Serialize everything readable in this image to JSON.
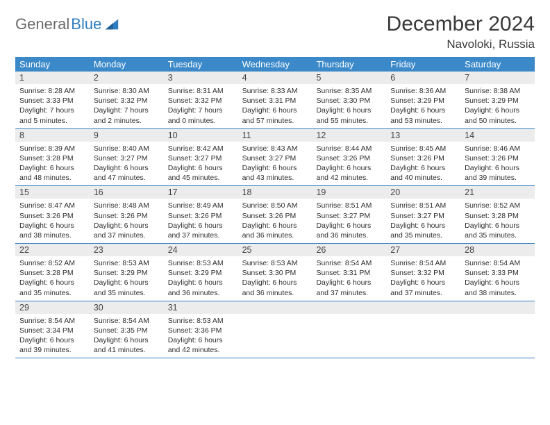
{
  "logo": {
    "textGray": "General",
    "textBlue": "Blue"
  },
  "title": "December 2024",
  "location": "Navoloki, Russia",
  "colors": {
    "headerBar": "#3b89c9",
    "dayNumBg": "#ececec",
    "weekDivider": "#2f7cc0",
    "textPrimary": "#333333",
    "logoGray": "#6b6b6b",
    "logoBlue": "#2f7cc0"
  },
  "dayHeaders": [
    "Sunday",
    "Monday",
    "Tuesday",
    "Wednesday",
    "Thursday",
    "Friday",
    "Saturday"
  ],
  "weeks": [
    [
      {
        "n": "1",
        "sr": "Sunrise: 8:28 AM",
        "ss": "Sunset: 3:33 PM",
        "dl": "Daylight: 7 hours and 5 minutes."
      },
      {
        "n": "2",
        "sr": "Sunrise: 8:30 AM",
        "ss": "Sunset: 3:32 PM",
        "dl": "Daylight: 7 hours and 2 minutes."
      },
      {
        "n": "3",
        "sr": "Sunrise: 8:31 AM",
        "ss": "Sunset: 3:32 PM",
        "dl": "Daylight: 7 hours and 0 minutes."
      },
      {
        "n": "4",
        "sr": "Sunrise: 8:33 AM",
        "ss": "Sunset: 3:31 PM",
        "dl": "Daylight: 6 hours and 57 minutes."
      },
      {
        "n": "5",
        "sr": "Sunrise: 8:35 AM",
        "ss": "Sunset: 3:30 PM",
        "dl": "Daylight: 6 hours and 55 minutes."
      },
      {
        "n": "6",
        "sr": "Sunrise: 8:36 AM",
        "ss": "Sunset: 3:29 PM",
        "dl": "Daylight: 6 hours and 53 minutes."
      },
      {
        "n": "7",
        "sr": "Sunrise: 8:38 AM",
        "ss": "Sunset: 3:29 PM",
        "dl": "Daylight: 6 hours and 50 minutes."
      }
    ],
    [
      {
        "n": "8",
        "sr": "Sunrise: 8:39 AM",
        "ss": "Sunset: 3:28 PM",
        "dl": "Daylight: 6 hours and 48 minutes."
      },
      {
        "n": "9",
        "sr": "Sunrise: 8:40 AM",
        "ss": "Sunset: 3:27 PM",
        "dl": "Daylight: 6 hours and 47 minutes."
      },
      {
        "n": "10",
        "sr": "Sunrise: 8:42 AM",
        "ss": "Sunset: 3:27 PM",
        "dl": "Daylight: 6 hours and 45 minutes."
      },
      {
        "n": "11",
        "sr": "Sunrise: 8:43 AM",
        "ss": "Sunset: 3:27 PM",
        "dl": "Daylight: 6 hours and 43 minutes."
      },
      {
        "n": "12",
        "sr": "Sunrise: 8:44 AM",
        "ss": "Sunset: 3:26 PM",
        "dl": "Daylight: 6 hours and 42 minutes."
      },
      {
        "n": "13",
        "sr": "Sunrise: 8:45 AM",
        "ss": "Sunset: 3:26 PM",
        "dl": "Daylight: 6 hours and 40 minutes."
      },
      {
        "n": "14",
        "sr": "Sunrise: 8:46 AM",
        "ss": "Sunset: 3:26 PM",
        "dl": "Daylight: 6 hours and 39 minutes."
      }
    ],
    [
      {
        "n": "15",
        "sr": "Sunrise: 8:47 AM",
        "ss": "Sunset: 3:26 PM",
        "dl": "Daylight: 6 hours and 38 minutes."
      },
      {
        "n": "16",
        "sr": "Sunrise: 8:48 AM",
        "ss": "Sunset: 3:26 PM",
        "dl": "Daylight: 6 hours and 37 minutes."
      },
      {
        "n": "17",
        "sr": "Sunrise: 8:49 AM",
        "ss": "Sunset: 3:26 PM",
        "dl": "Daylight: 6 hours and 37 minutes."
      },
      {
        "n": "18",
        "sr": "Sunrise: 8:50 AM",
        "ss": "Sunset: 3:26 PM",
        "dl": "Daylight: 6 hours and 36 minutes."
      },
      {
        "n": "19",
        "sr": "Sunrise: 8:51 AM",
        "ss": "Sunset: 3:27 PM",
        "dl": "Daylight: 6 hours and 36 minutes."
      },
      {
        "n": "20",
        "sr": "Sunrise: 8:51 AM",
        "ss": "Sunset: 3:27 PM",
        "dl": "Daylight: 6 hours and 35 minutes."
      },
      {
        "n": "21",
        "sr": "Sunrise: 8:52 AM",
        "ss": "Sunset: 3:28 PM",
        "dl": "Daylight: 6 hours and 35 minutes."
      }
    ],
    [
      {
        "n": "22",
        "sr": "Sunrise: 8:52 AM",
        "ss": "Sunset: 3:28 PM",
        "dl": "Daylight: 6 hours and 35 minutes."
      },
      {
        "n": "23",
        "sr": "Sunrise: 8:53 AM",
        "ss": "Sunset: 3:29 PM",
        "dl": "Daylight: 6 hours and 35 minutes."
      },
      {
        "n": "24",
        "sr": "Sunrise: 8:53 AM",
        "ss": "Sunset: 3:29 PM",
        "dl": "Daylight: 6 hours and 36 minutes."
      },
      {
        "n": "25",
        "sr": "Sunrise: 8:53 AM",
        "ss": "Sunset: 3:30 PM",
        "dl": "Daylight: 6 hours and 36 minutes."
      },
      {
        "n": "26",
        "sr": "Sunrise: 8:54 AM",
        "ss": "Sunset: 3:31 PM",
        "dl": "Daylight: 6 hours and 37 minutes."
      },
      {
        "n": "27",
        "sr": "Sunrise: 8:54 AM",
        "ss": "Sunset: 3:32 PM",
        "dl": "Daylight: 6 hours and 37 minutes."
      },
      {
        "n": "28",
        "sr": "Sunrise: 8:54 AM",
        "ss": "Sunset: 3:33 PM",
        "dl": "Daylight: 6 hours and 38 minutes."
      }
    ],
    [
      {
        "n": "29",
        "sr": "Sunrise: 8:54 AM",
        "ss": "Sunset: 3:34 PM",
        "dl": "Daylight: 6 hours and 39 minutes."
      },
      {
        "n": "30",
        "sr": "Sunrise: 8:54 AM",
        "ss": "Sunset: 3:35 PM",
        "dl": "Daylight: 6 hours and 41 minutes."
      },
      {
        "n": "31",
        "sr": "Sunrise: 8:53 AM",
        "ss": "Sunset: 3:36 PM",
        "dl": "Daylight: 6 hours and 42 minutes."
      },
      {
        "empty": true
      },
      {
        "empty": true
      },
      {
        "empty": true
      },
      {
        "empty": true
      }
    ]
  ]
}
